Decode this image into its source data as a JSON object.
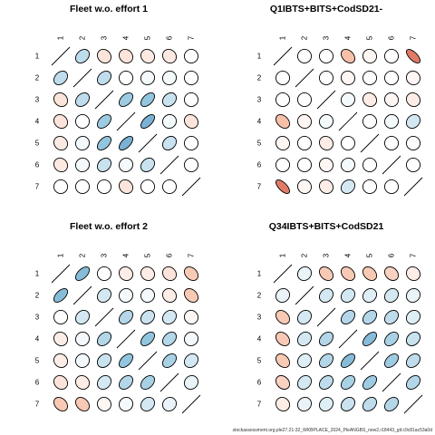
{
  "chart_data": [
    {
      "type": "heatmap",
      "style": "correlation ellipses",
      "title": "Fleet w.o. effort 1",
      "labels": [
        "1",
        "2",
        "3",
        "4",
        "5",
        "6",
        "7"
      ],
      "range": [
        -1,
        1
      ],
      "matrix": [
        [
          1.0,
          0.3,
          -0.15,
          -0.15,
          -0.12,
          -0.12,
          0.0
        ],
        [
          0.3,
          1.0,
          0.3,
          0.0,
          0.05,
          0.05,
          0.0
        ],
        [
          -0.15,
          0.3,
          1.0,
          0.45,
          0.5,
          0.25,
          0.0
        ],
        [
          -0.15,
          0.0,
          0.45,
          1.0,
          0.6,
          0.05,
          -0.15
        ],
        [
          -0.12,
          0.05,
          0.5,
          0.6,
          1.0,
          0.25,
          0.0
        ],
        [
          -0.12,
          0.05,
          0.25,
          0.05,
          0.25,
          1.0,
          0.0
        ],
        [
          0.0,
          0.0,
          0.0,
          -0.15,
          0.0,
          0.0,
          1.0
        ]
      ]
    },
    {
      "type": "heatmap",
      "style": "correlation ellipses",
      "title": "Q1IBTS+BITS+CodSD21-",
      "labels": [
        "1",
        "2",
        "3",
        "4",
        "5",
        "6",
        "7"
      ],
      "range": [
        -1,
        1
      ],
      "matrix": [
        [
          1.0,
          0.0,
          0.0,
          -0.35,
          -0.05,
          0.0,
          -0.65
        ],
        [
          0.0,
          1.0,
          0.0,
          -0.05,
          0.0,
          0.0,
          -0.05
        ],
        [
          0.0,
          0.0,
          1.0,
          0.05,
          -0.1,
          -0.05,
          -0.1
        ],
        [
          -0.35,
          -0.05,
          0.05,
          1.0,
          0.0,
          0.05,
          0.2
        ],
        [
          -0.05,
          0.0,
          -0.1,
          0.0,
          1.0,
          0.0,
          0.0
        ],
        [
          0.0,
          0.0,
          -0.05,
          0.05,
          0.0,
          1.0,
          0.0
        ],
        [
          -0.65,
          -0.05,
          -0.1,
          0.2,
          0.0,
          0.0,
          1.0
        ]
      ]
    },
    {
      "type": "heatmap",
      "style": "correlation ellipses",
      "title": "Fleet w.o. effort 2",
      "labels": [
        "1",
        "2",
        "3",
        "4",
        "5",
        "6",
        "7"
      ],
      "range": [
        -1,
        1
      ],
      "matrix": [
        [
          1.0,
          0.55,
          0.0,
          -0.1,
          -0.1,
          -0.15,
          -0.3
        ],
        [
          0.55,
          1.0,
          0.2,
          0.05,
          0.05,
          -0.1,
          -0.3
        ],
        [
          0.0,
          0.2,
          1.0,
          0.35,
          0.25,
          0.2,
          -0.05
        ],
        [
          -0.1,
          0.05,
          0.35,
          1.0,
          0.5,
          0.35,
          0.05
        ],
        [
          -0.1,
          0.05,
          0.25,
          0.5,
          1.0,
          0.4,
          0.2
        ],
        [
          -0.15,
          -0.1,
          0.2,
          0.35,
          0.4,
          1.0,
          0.1
        ],
        [
          -0.3,
          -0.3,
          -0.05,
          0.05,
          0.2,
          0.1,
          1.0
        ]
      ]
    },
    {
      "type": "heatmap",
      "style": "correlation ellipses",
      "title": "Q34IBTS+BITS+CodSD21",
      "labels": [
        "1",
        "2",
        "3",
        "4",
        "5",
        "6",
        "7"
      ],
      "range": [
        -1,
        1
      ],
      "matrix": [
        [
          1.0,
          0.1,
          -0.3,
          -0.3,
          -0.3,
          -0.25,
          -0.1
        ],
        [
          0.1,
          1.0,
          0.2,
          0.2,
          0.15,
          0.2,
          0.1
        ],
        [
          -0.3,
          0.2,
          1.0,
          0.35,
          0.35,
          0.3,
          0.15
        ],
        [
          -0.3,
          0.2,
          0.35,
          1.0,
          0.55,
          0.4,
          0.25
        ],
        [
          -0.3,
          0.15,
          0.35,
          0.55,
          1.0,
          0.45,
          0.3
        ],
        [
          -0.25,
          0.2,
          0.3,
          0.4,
          0.45,
          1.0,
          0.35
        ],
        [
          -0.1,
          0.1,
          0.15,
          0.25,
          0.3,
          0.35,
          1.0
        ]
      ]
    }
  ],
  "colors": {
    "strong_negative": "#b2182b",
    "negative": "#f4a582",
    "neutral": "#ffffff",
    "positive": "#92c5de",
    "strong_positive": "#2166ac",
    "outline": "#000000"
  },
  "footer": "stockassessment.org.ple27.21-32_WKBPLACE_2024_PleANGBS_new2,r18443_git:c9c81ac53a0d"
}
